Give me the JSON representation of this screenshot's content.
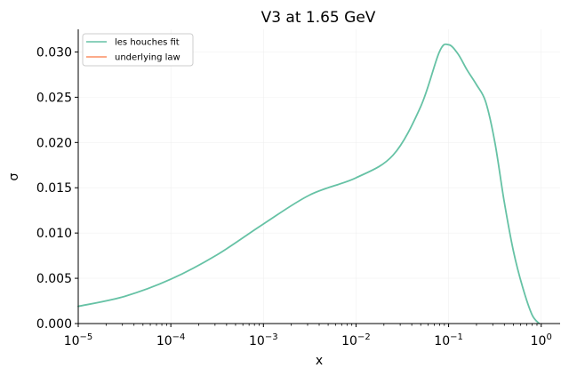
{
  "chart_data": {
    "type": "line",
    "title": "V3 at 1.65 GeV",
    "xlabel": "x",
    "ylabel": "σ",
    "xscale": "log",
    "xlim": [
      1e-05,
      1.6
    ],
    "ylim": [
      0,
      0.0325
    ],
    "grid": true,
    "legend_position": "top-left",
    "x_tick_labels": [
      {
        "exp": "-5",
        "value": 1e-05
      },
      {
        "exp": "-4",
        "value": 0.0001
      },
      {
        "exp": "-3",
        "value": 0.001
      },
      {
        "exp": "-2",
        "value": 0.01
      },
      {
        "exp": "-1",
        "value": 0.1
      },
      {
        "exp": "0",
        "value": 1
      }
    ],
    "y_ticks": [
      {
        "label": "0.000",
        "value": 0.0
      },
      {
        "label": "0.005",
        "value": 0.005
      },
      {
        "label": "0.010",
        "value": 0.01
      },
      {
        "label": "0.015",
        "value": 0.015
      },
      {
        "label": "0.020",
        "value": 0.02
      },
      {
        "label": "0.025",
        "value": 0.025
      },
      {
        "label": "0.030",
        "value": 0.03
      }
    ],
    "series": [
      {
        "name": "les houches fit",
        "color": "#66c2a5",
        "x": [
          1e-05,
          3.16e-05,
          0.0001,
          0.000316,
          0.001,
          0.00316,
          0.01,
          0.0251,
          0.0501,
          0.0794,
          0.1,
          0.1259,
          0.1585,
          0.1995,
          0.2512,
          0.3162,
          0.3981,
          0.5012,
          0.631,
          0.7943,
          0.95
        ],
        "values": [
          0.0019,
          0.003,
          0.0049,
          0.0076,
          0.011,
          0.0142,
          0.0161,
          0.0186,
          0.024,
          0.03,
          0.0308,
          0.0298,
          0.028,
          0.0264,
          0.0245,
          0.02,
          0.0135,
          0.008,
          0.004,
          0.001,
          0.0
        ]
      },
      {
        "name": "underlying law",
        "color": "#fc8d62",
        "x": [],
        "values": []
      }
    ]
  }
}
